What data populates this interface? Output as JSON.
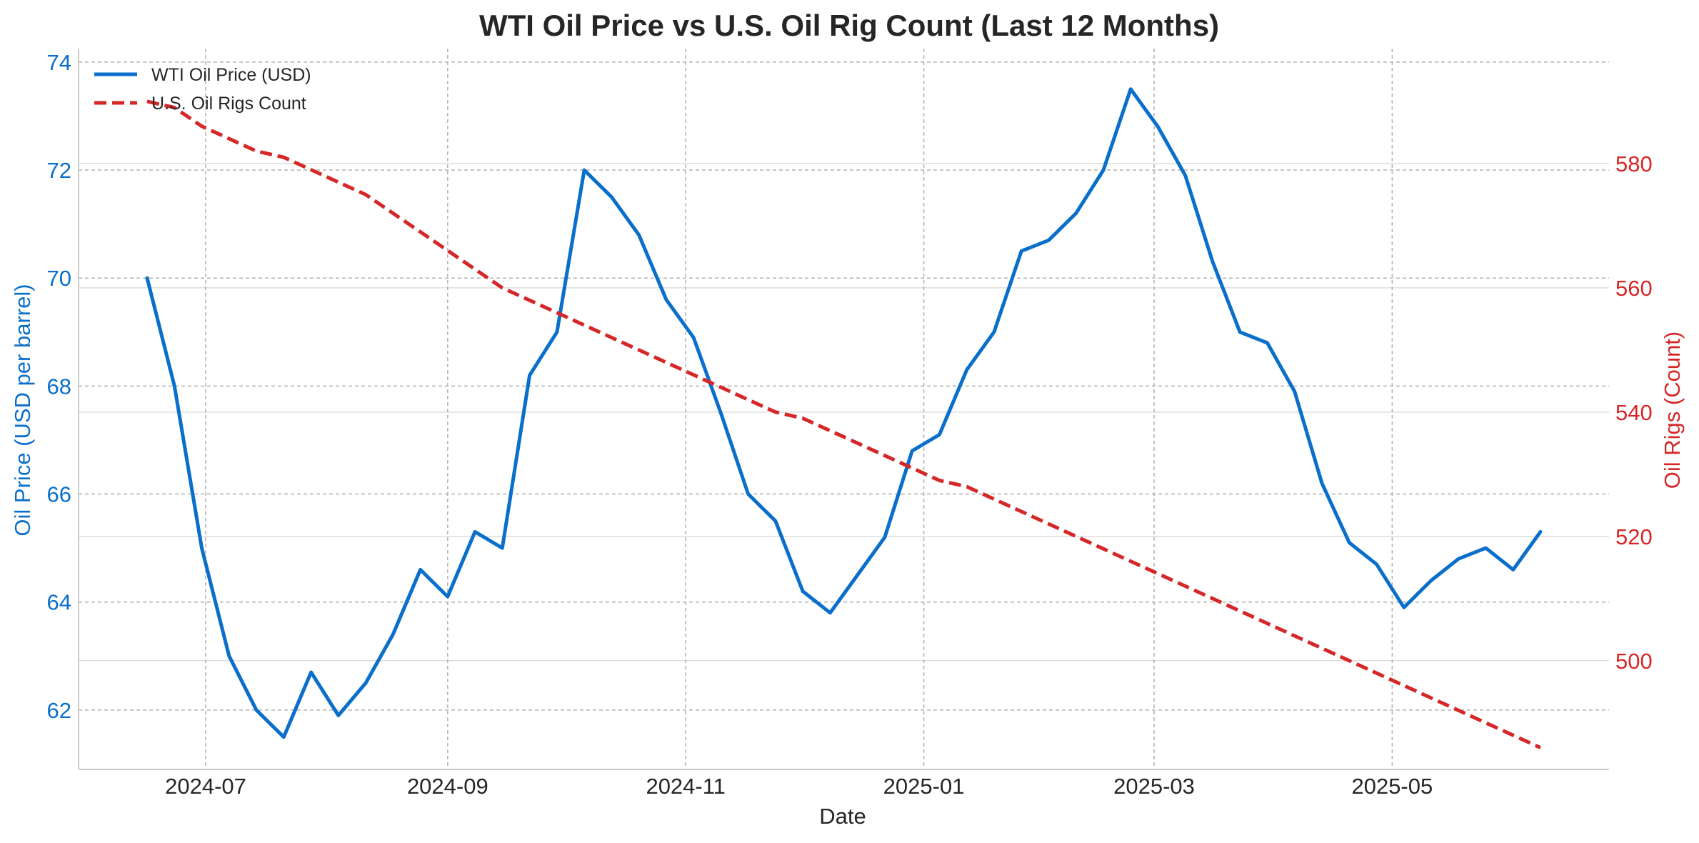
{
  "chart_data": {
    "type": "line",
    "title": "WTI Oil Price vs U.S. Oil Rig Count (Last 12 Months)",
    "xlabel": "Date",
    "ylabel_left": "Oil Price (USD per barrel)",
    "ylabel_right": "Oil Rigs (Count)",
    "x_ticks": [
      "2024-07",
      "2024-09",
      "2024-11",
      "2025-01",
      "2025-03",
      "2025-05"
    ],
    "y_left_ticks": [
      62,
      64,
      66,
      68,
      70,
      72,
      74
    ],
    "y_right_ticks": [
      500,
      520,
      540,
      560,
      580
    ],
    "y_left_range": [
      60.9,
      74.25
    ],
    "y_right_range": [
      482.5,
      598.5
    ],
    "grid": true,
    "legend_position": "top-left",
    "colors": {
      "price": "#0a6fca",
      "rigs": "#d62728",
      "text": "#262626"
    },
    "dates": [
      "2024-06-16",
      "2024-06-23",
      "2024-06-30",
      "2024-07-07",
      "2024-07-14",
      "2024-07-21",
      "2024-07-28",
      "2024-08-04",
      "2024-08-11",
      "2024-08-18",
      "2024-08-25",
      "2024-09-01",
      "2024-09-08",
      "2024-09-15",
      "2024-09-22",
      "2024-09-29",
      "2024-10-06",
      "2024-10-13",
      "2024-10-20",
      "2024-10-27",
      "2024-11-03",
      "2024-11-10",
      "2024-11-17",
      "2024-11-24",
      "2024-12-01",
      "2024-12-08",
      "2024-12-15",
      "2024-12-22",
      "2024-12-29",
      "2025-01-05",
      "2025-01-12",
      "2025-01-19",
      "2025-01-26",
      "2025-02-02",
      "2025-02-09",
      "2025-02-16",
      "2025-02-23",
      "2025-03-02",
      "2025-03-09",
      "2025-03-16",
      "2025-03-23",
      "2025-03-30",
      "2025-04-06",
      "2025-04-13",
      "2025-04-20",
      "2025-04-27",
      "2025-05-04",
      "2025-05-11",
      "2025-05-18",
      "2025-05-25",
      "2025-06-01",
      "2025-06-08"
    ],
    "series": [
      {
        "name": "WTI Oil Price (USD)",
        "axis": "left",
        "style": "solid",
        "values": [
          70.0,
          68.0,
          65.0,
          63.0,
          62.0,
          61.5,
          62.7,
          61.9,
          62.5,
          63.4,
          64.6,
          64.1,
          65.3,
          65.0,
          68.2,
          69.0,
          72.0,
          71.5,
          70.8,
          69.6,
          68.9,
          67.5,
          66.0,
          65.5,
          64.2,
          63.8,
          64.5,
          65.2,
          66.8,
          67.1,
          68.3,
          69.0,
          70.5,
          70.7,
          71.2,
          72.0,
          73.5,
          72.8,
          71.9,
          70.3,
          69.0,
          68.8,
          67.9,
          66.2,
          65.1,
          64.7,
          63.9,
          64.4,
          64.8,
          65.0,
          64.6,
          65.3
        ]
      },
      {
        "name": "U.S. Oil Rigs Count",
        "axis": "right",
        "style": "dashed",
        "values": [
          590,
          589,
          586,
          584,
          582,
          581,
          579,
          577,
          575,
          572,
          569,
          566,
          563,
          560,
          558,
          556,
          554,
          552,
          550,
          548,
          546,
          544,
          542,
          540,
          539,
          537,
          535,
          533,
          531,
          529,
          528,
          526,
          524,
          522,
          520,
          518,
          516,
          514,
          512,
          510,
          508,
          506,
          504,
          502,
          500,
          498,
          496,
          494,
          492,
          490,
          488,
          486
        ]
      }
    ]
  }
}
